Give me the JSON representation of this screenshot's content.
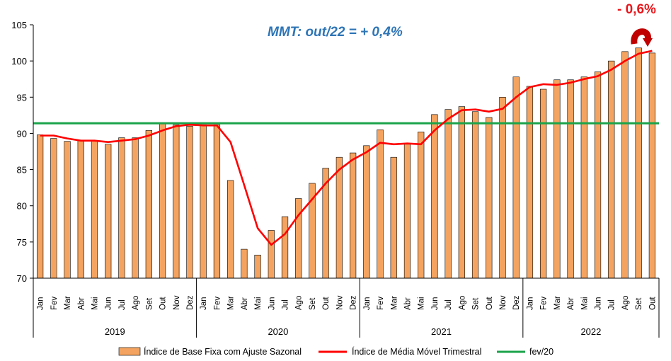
{
  "chart_data": {
    "type": "bar",
    "ylim": [
      70,
      105
    ],
    "yticks": [
      70,
      75,
      80,
      85,
      90,
      95,
      100,
      105
    ],
    "categories": [
      "Jan",
      "Fev",
      "Mar",
      "Abr",
      "Mai",
      "Jun",
      "Jul",
      "Ago",
      "Set",
      "Out",
      "Nov",
      "Dez",
      "Jan",
      "Fev",
      "Mar",
      "Abr",
      "Mai",
      "Jun",
      "Jul",
      "Ago",
      "Set",
      "Out",
      "Nov",
      "Dez",
      "Jan",
      "Fev",
      "Mar",
      "Abr",
      "Mai",
      "Jun",
      "Jul",
      "Ago",
      "Set",
      "Out",
      "Nov",
      "Dez",
      "Jan",
      "Fev",
      "Mar",
      "Abr",
      "Mai",
      "Jun",
      "Jul",
      "Ago",
      "Set",
      "Out"
    ],
    "years": [
      {
        "label": "2019",
        "start": 0,
        "end": 11
      },
      {
        "label": "2020",
        "start": 12,
        "end": 23
      },
      {
        "label": "2021",
        "start": 24,
        "end": 35
      },
      {
        "label": "2022",
        "start": 36,
        "end": 45
      }
    ],
    "series": [
      {
        "name": "Índice de Base Fixa com Ajuste Sazonal",
        "kind": "bar",
        "color": "#f4a460",
        "values": [
          89.8,
          89.3,
          88.9,
          89.0,
          89.0,
          88.5,
          89.4,
          89.4,
          90.4,
          91.4,
          91.2,
          91.0,
          91.2,
          91.2,
          83.5,
          74.0,
          73.2,
          76.6,
          78.5,
          81.0,
          83.1,
          85.2,
          86.7,
          87.3,
          88.3,
          90.5,
          86.7,
          88.5,
          90.2,
          92.6,
          93.3,
          93.7,
          93.0,
          92.2,
          95.0,
          97.8,
          96.5,
          96.1,
          97.4,
          97.4,
          97.8,
          98.5,
          100.0,
          101.3,
          101.8,
          101.1
        ]
      },
      {
        "name": "Índice de Média Móvel Trimestral",
        "kind": "line",
        "color": "#ff0000",
        "values": [
          89.7,
          89.7,
          89.3,
          89.0,
          89.0,
          88.8,
          89.0,
          89.2,
          89.7,
          90.4,
          91.0,
          91.2,
          91.1,
          91.1,
          88.8,
          82.9,
          76.9,
          74.6,
          76.1,
          78.7,
          80.9,
          83.1,
          85.0,
          86.4,
          87.4,
          88.7,
          88.5,
          88.6,
          88.5,
          90.4,
          92.0,
          93.2,
          93.3,
          93.0,
          93.4,
          95.0,
          96.4,
          96.8,
          96.7,
          97.0,
          97.5,
          97.9,
          98.8,
          100.0,
          101.0,
          101.4
        ]
      },
      {
        "name": "fev/20",
        "kind": "hline",
        "color": "#1aa34a",
        "value": 91.4
      }
    ],
    "annotations": [
      {
        "text": "MMT: out/22 =  + 0,4%"
      },
      {
        "text": "- 0,6%"
      }
    ]
  }
}
